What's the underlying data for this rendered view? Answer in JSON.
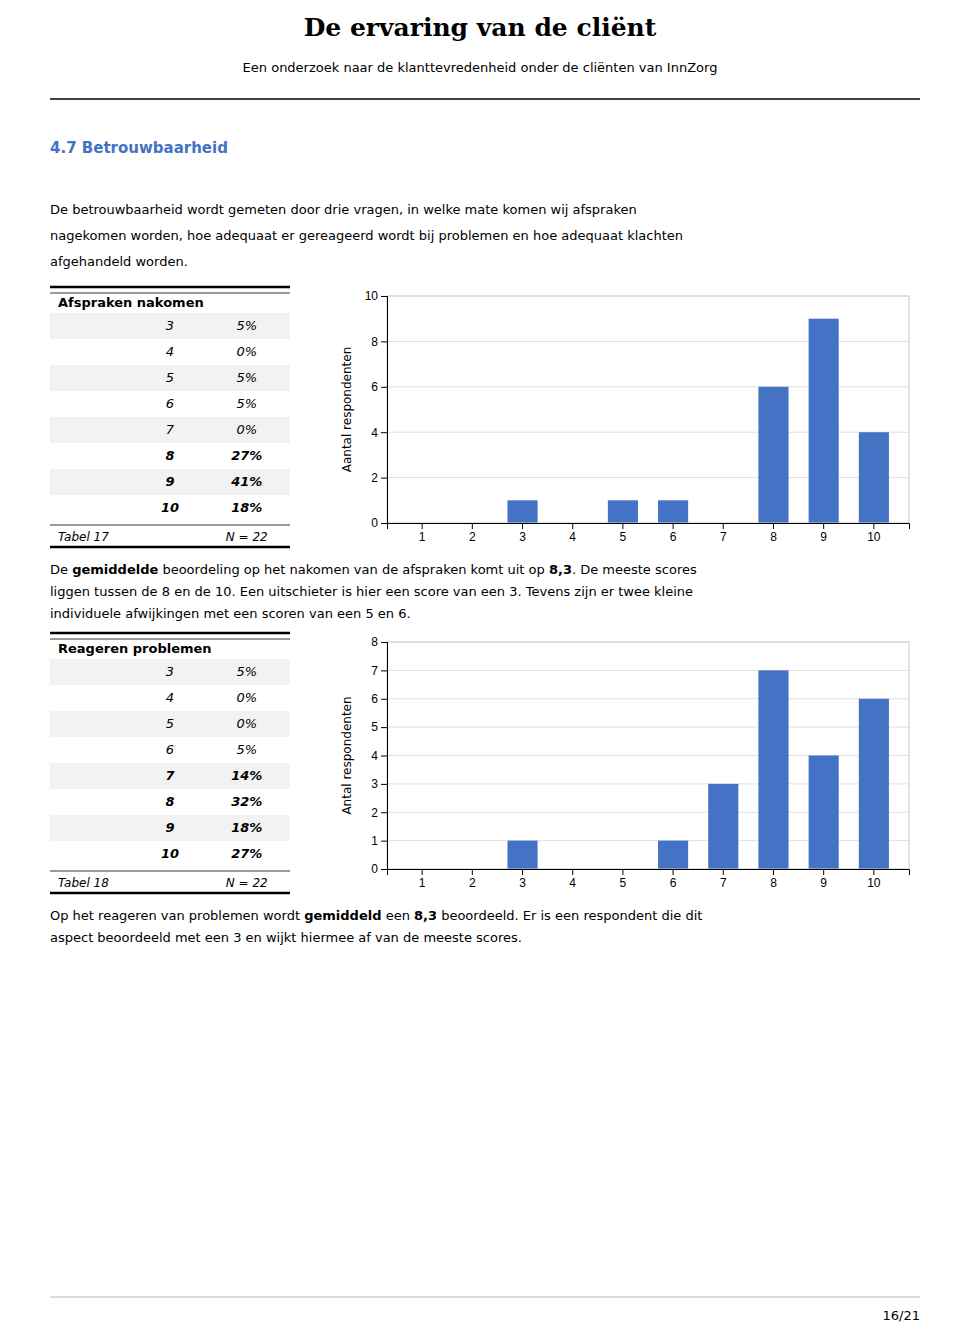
{
  "page": {
    "title": "De ervaring van de cliënt",
    "subtitle": "Een onderzoek naar de klanttevredenheid onder de cliënten van InnZorg",
    "section_title": "4.7 Betrouwbaarheid",
    "section_title_color": "#4472C4",
    "section_text": [
      "De betrouwbaarheid wordt gemeten door drie vragen, in welke mate komen wij afspraken",
      "nagekomen worden, hoe adequaat er gereageerd wordt bij problemen en hoe adequaat klachten",
      "afgehandeld worden."
    ],
    "page_number": "16/21"
  },
  "tables": [
    {
      "title": "Afspraken nakomen",
      "alt_color": "#F2F2F2",
      "rows": [
        {
          "label": "3",
          "value": "5%",
          "bold": false
        },
        {
          "label": "4",
          "value": "0%",
          "bold": false
        },
        {
          "label": "5",
          "value": "5%",
          "bold": false
        },
        {
          "label": "6",
          "value": "5%",
          "bold": false
        },
        {
          "label": "7",
          "value": "0%",
          "bold": false
        },
        {
          "label": "8",
          "value": "27%",
          "bold": true
        },
        {
          "label": "9",
          "value": "41%",
          "bold": true
        },
        {
          "label": "10",
          "value": "18%",
          "bold": true
        }
      ],
      "footer": "Tabel 17",
      "n": "N = 22"
    },
    {
      "title": "Reageren problemen",
      "alt_color": "#F2F2F2",
      "rows": [
        {
          "label": "3",
          "value": "5%",
          "bold": false
        },
        {
          "label": "4",
          "value": "0%",
          "bold": false
        },
        {
          "label": "5",
          "value": "0%",
          "bold": false
        },
        {
          "label": "6",
          "value": "5%",
          "bold": false
        },
        {
          "label": "7",
          "value": "14%",
          "bold": true
        },
        {
          "label": "8",
          "value": "32%",
          "bold": true
        },
        {
          "label": "9",
          "value": "18%",
          "bold": true
        },
        {
          "label": "10",
          "value": "27%",
          "bold": true
        }
      ],
      "footer": "Tabel 18",
      "n": "N = 22"
    }
  ],
  "paragraphs": [
    {
      "lines": [
        [
          {
            "text": "De ",
            "bold": false
          },
          {
            "text": "gemiddelde",
            "bold": true
          },
          {
            "text": " beoordeling op het nakomen van de afspraken komt uit op ",
            "bold": false
          },
          {
            "text": "8,3",
            "bold": true
          },
          {
            "text": ". De meeste scores",
            "bold": false
          }
        ],
        [
          {
            "text": "liggen tussen de 8 en de 10. Een uitschieter is hier een score van een 3. Tevens zijn er twee kleine",
            "bold": false
          }
        ],
        [
          {
            "text": "individuele afwijkingen met een scoren van een 5 en 6.",
            "bold": false
          }
        ]
      ]
    },
    {
      "lines": [
        [
          {
            "text": "Op het reageren van problemen wordt ",
            "bold": false
          },
          {
            "text": "gemiddeld",
            "bold": true
          },
          {
            "text": " een ",
            "bold": false
          },
          {
            "text": "8,3",
            "bold": true
          },
          {
            "text": " beoordeeld. Er is een respondent die dit",
            "bold": false
          }
        ],
        [
          {
            "text": "aspect beoordeeld met een 3 en wijkt hiermee af van de meeste scores.",
            "bold": false
          }
        ]
      ]
    }
  ],
  "chart_data": [
    {
      "type": "bar",
      "categories": [
        "1",
        "2",
        "3",
        "4",
        "5",
        "6",
        "7",
        "8",
        "9",
        "10"
      ],
      "values": [
        0,
        0,
        1,
        0,
        1,
        1,
        0,
        6,
        9,
        4
      ],
      "color": "#4472C4",
      "ylabel": "Aantal respondenten",
      "ylim": [
        0,
        10
      ],
      "yticks": [
        0,
        2,
        4,
        6,
        8,
        10
      ],
      "grid": true
    },
    {
      "type": "bar",
      "categories": [
        "1",
        "2",
        "3",
        "4",
        "5",
        "6",
        "7",
        "8",
        "9",
        "10"
      ],
      "values": [
        0,
        0,
        1,
        0,
        0,
        1,
        3,
        7,
        4,
        6
      ],
      "color": "#4472C4",
      "ylabel": "Antal respondenten",
      "ylim": [
        0,
        8
      ],
      "yticks": [
        0,
        1,
        2,
        3,
        4,
        5,
        6,
        7,
        8
      ],
      "grid": true
    }
  ]
}
